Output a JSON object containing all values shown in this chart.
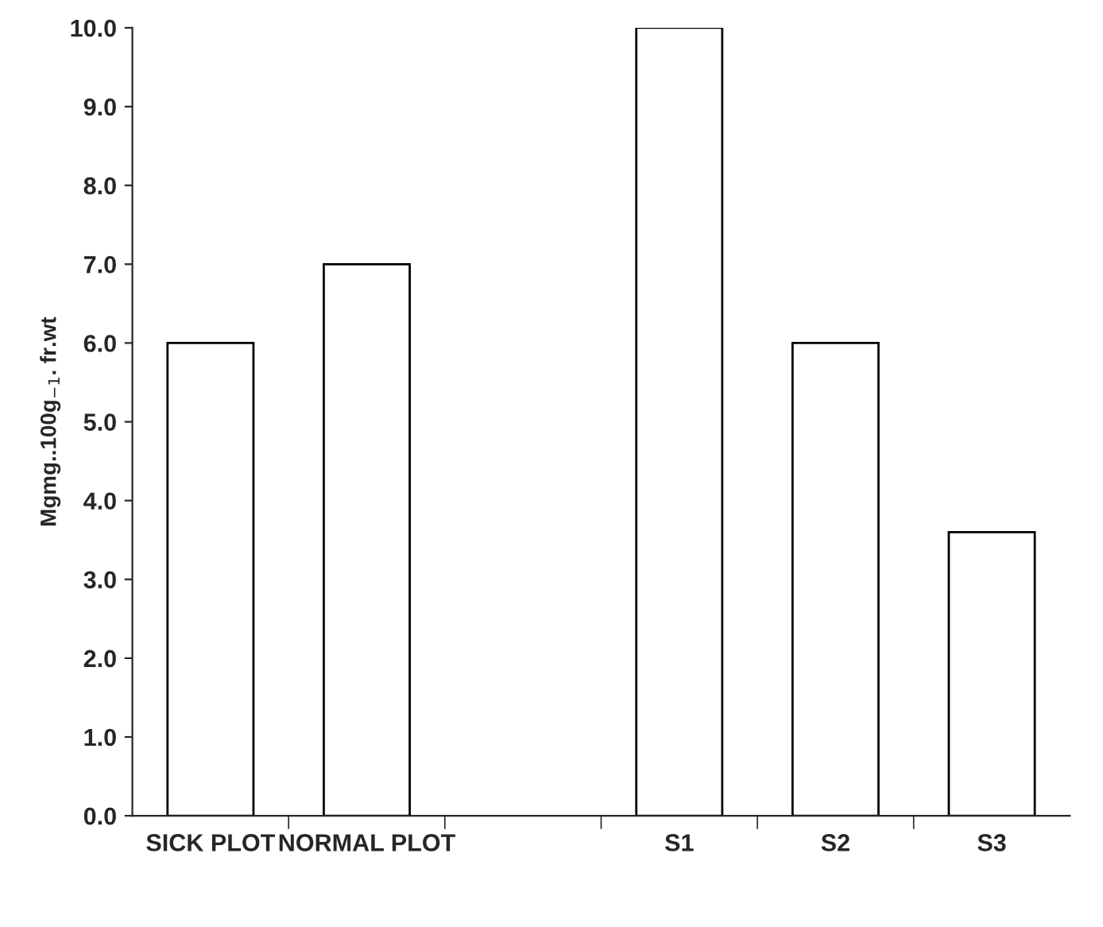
{
  "chart_data": {
    "type": "bar",
    "ylabel": "Mgmg..100g$_{−1}$. fr.wt",
    "categories": [
      "SICK PLOT",
      "NORMAL PLOT",
      null,
      "S1",
      "S2",
      "S3"
    ],
    "values": [
      6.0,
      7.0,
      null,
      10.0,
      6.0,
      3.6
    ],
    "color": "#ffffff",
    "ylim": [
      0,
      10
    ],
    "yticks": [
      {
        "value": 0,
        "label": "0.0"
      },
      {
        "value": 1,
        "label": "1.0"
      },
      {
        "value": 2,
        "label": "2.0"
      },
      {
        "value": 3,
        "label": "3.0"
      },
      {
        "value": 4,
        "label": "4.0"
      },
      {
        "value": 5,
        "label": "5.0"
      },
      {
        "value": 6,
        "label": "6.0"
      },
      {
        "value": 7,
        "label": "7.0"
      },
      {
        "value": 8,
        "label": "8.0"
      },
      {
        "value": 9,
        "label": "9.0"
      },
      {
        "value": 10,
        "label": "10.0"
      }
    ],
    "grid": false,
    "legend": false
  }
}
